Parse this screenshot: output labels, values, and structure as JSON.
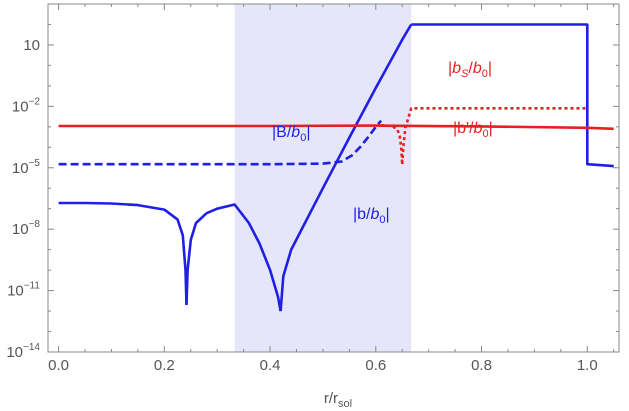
{
  "chart_data": {
    "type": "line",
    "xlabel": "r/r_sol",
    "xlim": [
      -0.02,
      1.06
    ],
    "ylim": [
      1e-14,
      1000
    ],
    "yscale": "log",
    "x_ticks": [
      {
        "value": 0.0,
        "label": "0.0"
      },
      {
        "value": 0.2,
        "label": "0.2"
      },
      {
        "value": 0.4,
        "label": "0.4"
      },
      {
        "value": 0.6,
        "label": "0.6"
      },
      {
        "value": 0.8,
        "label": "0.8"
      },
      {
        "value": 1.0,
        "label": "1.0"
      }
    ],
    "y_ticks": [
      {
        "value": 10,
        "base": "10",
        "exp": ""
      },
      {
        "value": 0.01,
        "base": "10",
        "exp": "−2"
      },
      {
        "value": 1e-05,
        "base": "10",
        "exp": "−5"
      },
      {
        "value": 1e-08,
        "base": "10",
        "exp": "−8"
      },
      {
        "value": 1e-11,
        "base": "10",
        "exp": "−11"
      },
      {
        "value": 1e-14,
        "base": "10",
        "exp": "−14"
      }
    ],
    "shaded_region": {
      "x": [
        0.333,
        0.667
      ],
      "color": "#e6e6fb"
    },
    "colors": {
      "blue": "#1f1fe6",
      "red": "#e61f1f",
      "axis": "#888888"
    },
    "series": [
      {
        "name": "|b/b0|",
        "color": "#1f1fe6",
        "style": "solid",
        "segments": [
          [
            [
              0.0,
              1.9e-07
            ],
            [
              0.05,
              1.9e-07
            ],
            [
              0.1,
              1.8e-07
            ],
            [
              0.15,
              1.5e-07
            ],
            [
              0.2,
              9e-08
            ],
            [
              0.225,
              3e-08
            ],
            [
              0.235,
              5e-09
            ],
            [
              0.24,
              1e-10
            ],
            [
              0.242,
              2e-12
            ]
          ],
          [
            [
              0.242,
              2e-12
            ],
            [
              0.244,
              1e-10
            ],
            [
              0.25,
              3e-09
            ],
            [
              0.26,
              2e-08
            ],
            [
              0.28,
              6e-08
            ],
            [
              0.3,
              1e-07
            ],
            [
              0.333,
              1.6e-07
            ],
            [
              0.36,
              2e-08
            ],
            [
              0.38,
              2e-09
            ],
            [
              0.4,
              1e-10
            ],
            [
              0.415,
              5e-12
            ],
            [
              0.42,
              1e-12
            ]
          ],
          [
            [
              0.42,
              1e-12
            ],
            [
              0.425,
              5e-11
            ],
            [
              0.44,
              1e-09
            ],
            [
              0.5,
              1e-06
            ],
            [
              0.55,
              0.0003
            ],
            [
              0.6,
              0.08
            ],
            [
              0.65,
              18
            ],
            [
              0.667,
              100
            ]
          ],
          [
            [
              0.667,
              100
            ],
            [
              1.0,
              100
            ],
            [
              1.0,
              1.5e-05
            ],
            [
              1.05,
              1.2e-05
            ]
          ]
        ]
      },
      {
        "name": "|B/b0|",
        "color": "#1f1fe6",
        "style": "dashed",
        "segments": [
          [
            [
              0.0,
              1.5e-05
            ],
            [
              0.1,
              1.5e-05
            ],
            [
              0.2,
              1.5e-05
            ],
            [
              0.3,
              1.5e-05
            ],
            [
              0.4,
              1.5e-05
            ],
            [
              0.5,
              1.6e-05
            ],
            [
              0.535,
              2e-05
            ],
            [
              0.555,
              4e-05
            ],
            [
              0.57,
              0.0001
            ],
            [
              0.585,
              0.0003
            ],
            [
              0.6,
              0.001
            ],
            [
              0.61,
              0.002
            ]
          ]
        ]
      },
      {
        "name": "|b'/b0|",
        "color": "#e61f1f",
        "style": "solid",
        "segments": [
          [
            [
              0.0,
              0.0011
            ],
            [
              0.2,
              0.0011
            ],
            [
              0.4,
              0.0011
            ],
            [
              0.6,
              0.00115
            ],
            [
              0.8,
              0.00105
            ],
            [
              1.0,
              0.0009
            ],
            [
              1.05,
              0.0008
            ]
          ]
        ]
      },
      {
        "name": "|b_S/b0|",
        "color": "#e61f1f",
        "style": "dotted",
        "segments": [
          [
            [
              0.61,
              0.0012
            ],
            [
              0.63,
              0.0011
            ],
            [
              0.64,
              0.0008
            ],
            [
              0.645,
              0.0004
            ],
            [
              0.648,
              0.0001
            ],
            [
              0.65,
              1.4e-05
            ],
            [
              0.652,
              0.0001
            ],
            [
              0.656,
              0.0009
            ],
            [
              0.667,
              0.008
            ],
            [
              1.0,
              0.008
            ]
          ]
        ]
      }
    ],
    "annotations": {
      "b_over_b0": {
        "pre": "|b/",
        "b": "b",
        "sub": "0",
        "post": "|"
      },
      "B_over_b0": {
        "pre": "|B/",
        "b": "b",
        "sub": "0",
        "post": "|"
      },
      "bprime_over_b0": {
        "pre": "|b'/",
        "b": "b",
        "sub": "0",
        "post": "|"
      },
      "bS_over_b0": {
        "pre": "|",
        "b": "b",
        "sub": "S",
        "mid": "/",
        "b2": "b",
        "sub2": "0",
        "post": "|"
      },
      "x_axis_label": {
        "main": "r/r",
        "sub": "sol"
      }
    }
  }
}
